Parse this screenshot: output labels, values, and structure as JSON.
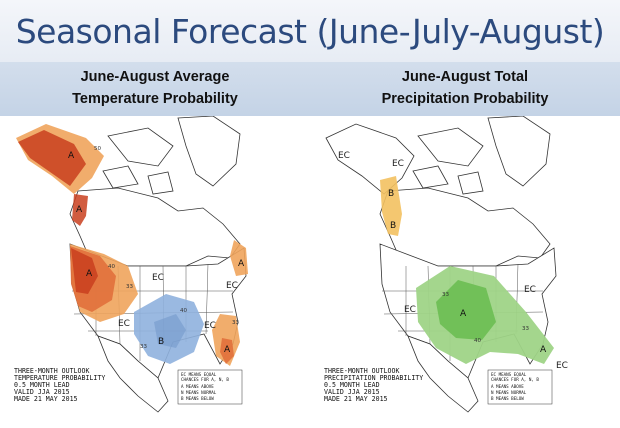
{
  "title": "Seasonal Forecast (June-July-August)",
  "colors": {
    "title_text": "#2c4a7e",
    "above_dark": "#c9401f",
    "above_mid": "#e1703c",
    "above_light": "#f0a45c",
    "below": "#8fb1de",
    "above_precip_light": "#f3c161",
    "above_precip": "#6fbf55"
  },
  "temperature": {
    "title_line1": "June-August Average",
    "title_line2": "Temperature Probability",
    "labels": {
      "alaska_A": "A",
      "pnw_A": "A",
      "west_A": "A",
      "ne_A": "A",
      "se_A": "A",
      "south_B": "B",
      "ec_plains": "EC",
      "ec_west": "EC",
      "ec_east": "EC",
      "ec_central": "EC"
    },
    "contours": [
      "50",
      "40",
      "33",
      "33",
      "40",
      "33"
    ],
    "caption": [
      "THREE-MONTH OUTLOOK",
      "TEMPERATURE PROBABILITY",
      "0.5 MONTH LEAD",
      "VALID JJA 2015",
      "MADE 21 MAY 2015"
    ],
    "legend": [
      "EC MEANS EQUAL",
      "CHANCES FOR A, N, B",
      "A MEANS ABOVE",
      "N MEANS NORMAL",
      "B MEANS BELOW"
    ]
  },
  "precipitation": {
    "title_line1": "June-August Total",
    "title_line2": "Precipitation Probability",
    "labels": {
      "ec_alaska": "EC",
      "ec_canada": "EC",
      "pnw_B": "B",
      "pnw_B2": "B",
      "ec_west": "EC",
      "ec_east": "EC",
      "central_A": "A",
      "se_A": "A",
      "ec_florida": "EC"
    },
    "contours": [
      "33",
      "40",
      "33"
    ],
    "caption": [
      "THREE-MONTH OUTLOOK",
      "PRECIPITATION PROBABILITY",
      "0.5 MONTH LEAD",
      "VALID JJA 2015",
      "MADE 21 MAY 2015"
    ],
    "legend": [
      "EC MEANS EQUAL",
      "CHANCES FOR A, N, B",
      "A MEANS ABOVE",
      "N MEANS NORMAL",
      "B MEANS BELOW"
    ]
  }
}
